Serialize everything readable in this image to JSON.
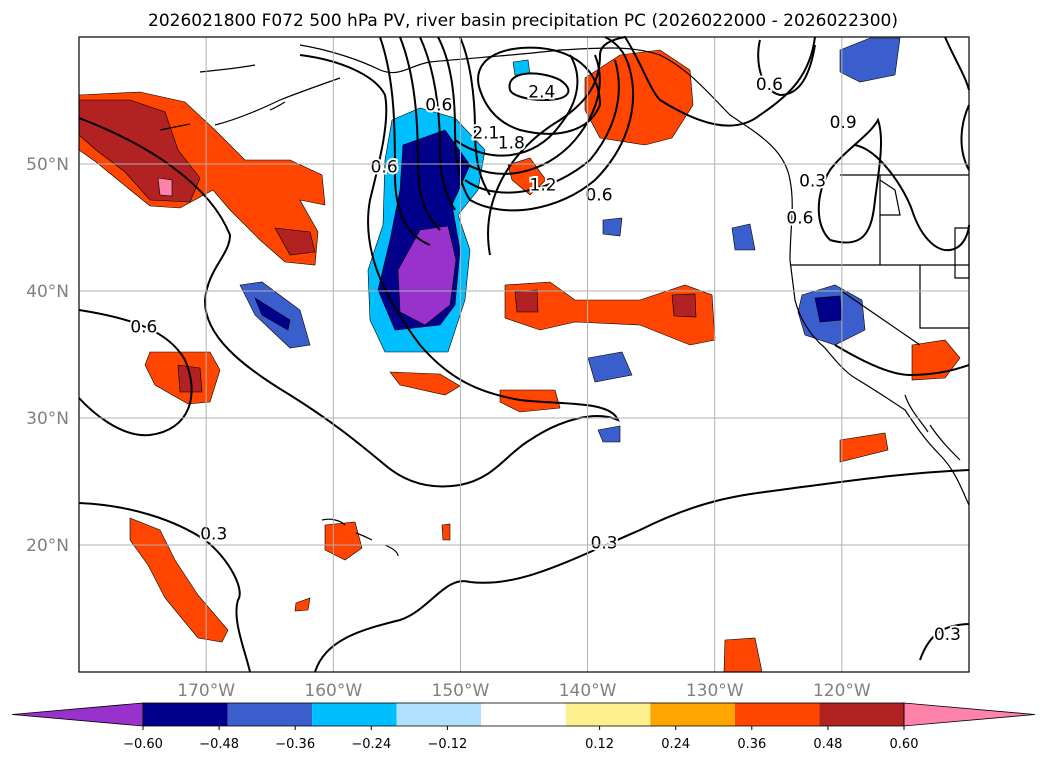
{
  "chart_data": {
    "type": "heatmap",
    "title": "2026021800 F072 500 hPa PV, river basin precipitation PC (2026022000 - 2026022300)",
    "map": {
      "lon_range": [
        -180,
        -110
      ],
      "lat_range": [
        10,
        60
      ],
      "x_ticks": [
        {
          "lon": -170,
          "label": "170°W"
        },
        {
          "lon": -160,
          "label": "160°W"
        },
        {
          "lon": -150,
          "label": "150°W"
        },
        {
          "lon": -140,
          "label": "140°W"
        },
        {
          "lon": -130,
          "label": "130°W"
        },
        {
          "lon": -120,
          "label": "120°W"
        }
      ],
      "y_ticks": [
        {
          "lat": 20,
          "label": "20°N"
        },
        {
          "lat": 30,
          "label": "30°N"
        },
        {
          "lat": 40,
          "label": "40°N"
        },
        {
          "lat": 50,
          "label": "50°N"
        }
      ],
      "gridlines": true
    },
    "colorbar": {
      "extend": "both",
      "levels": [
        -0.72,
        -0.6,
        -0.48,
        -0.36,
        -0.24,
        -0.12,
        0.12,
        0.24,
        0.36,
        0.48,
        0.6,
        0.72
      ],
      "colors": [
        "#9932cc",
        "#00008b",
        "#3a5fcd",
        "#00bfff",
        "#b0e2ff",
        "#ffffff",
        "#fff08f",
        "#ffa500",
        "#ff4500",
        "#b22222",
        "#ff82ab"
      ],
      "tick_values": [
        -0.6,
        -0.48,
        -0.36,
        -0.24,
        -0.12,
        0.12,
        0.24,
        0.36,
        0.48,
        0.6
      ],
      "tick_labels": [
        "−0.60",
        "−0.48",
        "−0.36",
        "−0.24",
        "−0.12",
        "0.12",
        "0.24",
        "0.36",
        "0.48",
        "0.60"
      ]
    },
    "pv_contour_labels": [
      {
        "text": "0.6",
        "lon": -174.9,
        "lat": 37.2
      },
      {
        "text": "0.3",
        "lon": -169.4,
        "lat": 20.9
      },
      {
        "text": "0.3",
        "lon": -138.7,
        "lat": 20.2
      },
      {
        "text": "0.3",
        "lon": -111.7,
        "lat": 13.0
      },
      {
        "text": "0.6",
        "lon": -139.1,
        "lat": 47.6
      },
      {
        "text": "1.2",
        "lon": -143.5,
        "lat": 48.4
      },
      {
        "text": "1.8",
        "lon": -146.0,
        "lat": 51.7
      },
      {
        "text": "2.1",
        "lon": -148.0,
        "lat": 52.5
      },
      {
        "text": "2.4",
        "lon": -143.6,
        "lat": 55.7
      },
      {
        "text": "0.6",
        "lon": -151.7,
        "lat": 54.7
      },
      {
        "text": "0.6",
        "lon": -156.0,
        "lat": 49.8
      },
      {
        "text": "0.6",
        "lon": -125.7,
        "lat": 56.3
      },
      {
        "text": "0.3",
        "lon": -122.3,
        "lat": 48.7
      },
      {
        "text": "0.9",
        "lon": -119.9,
        "lat": 53.3
      },
      {
        "text": "0.6",
        "lon": -123.3,
        "lat": 45.8
      }
    ]
  }
}
